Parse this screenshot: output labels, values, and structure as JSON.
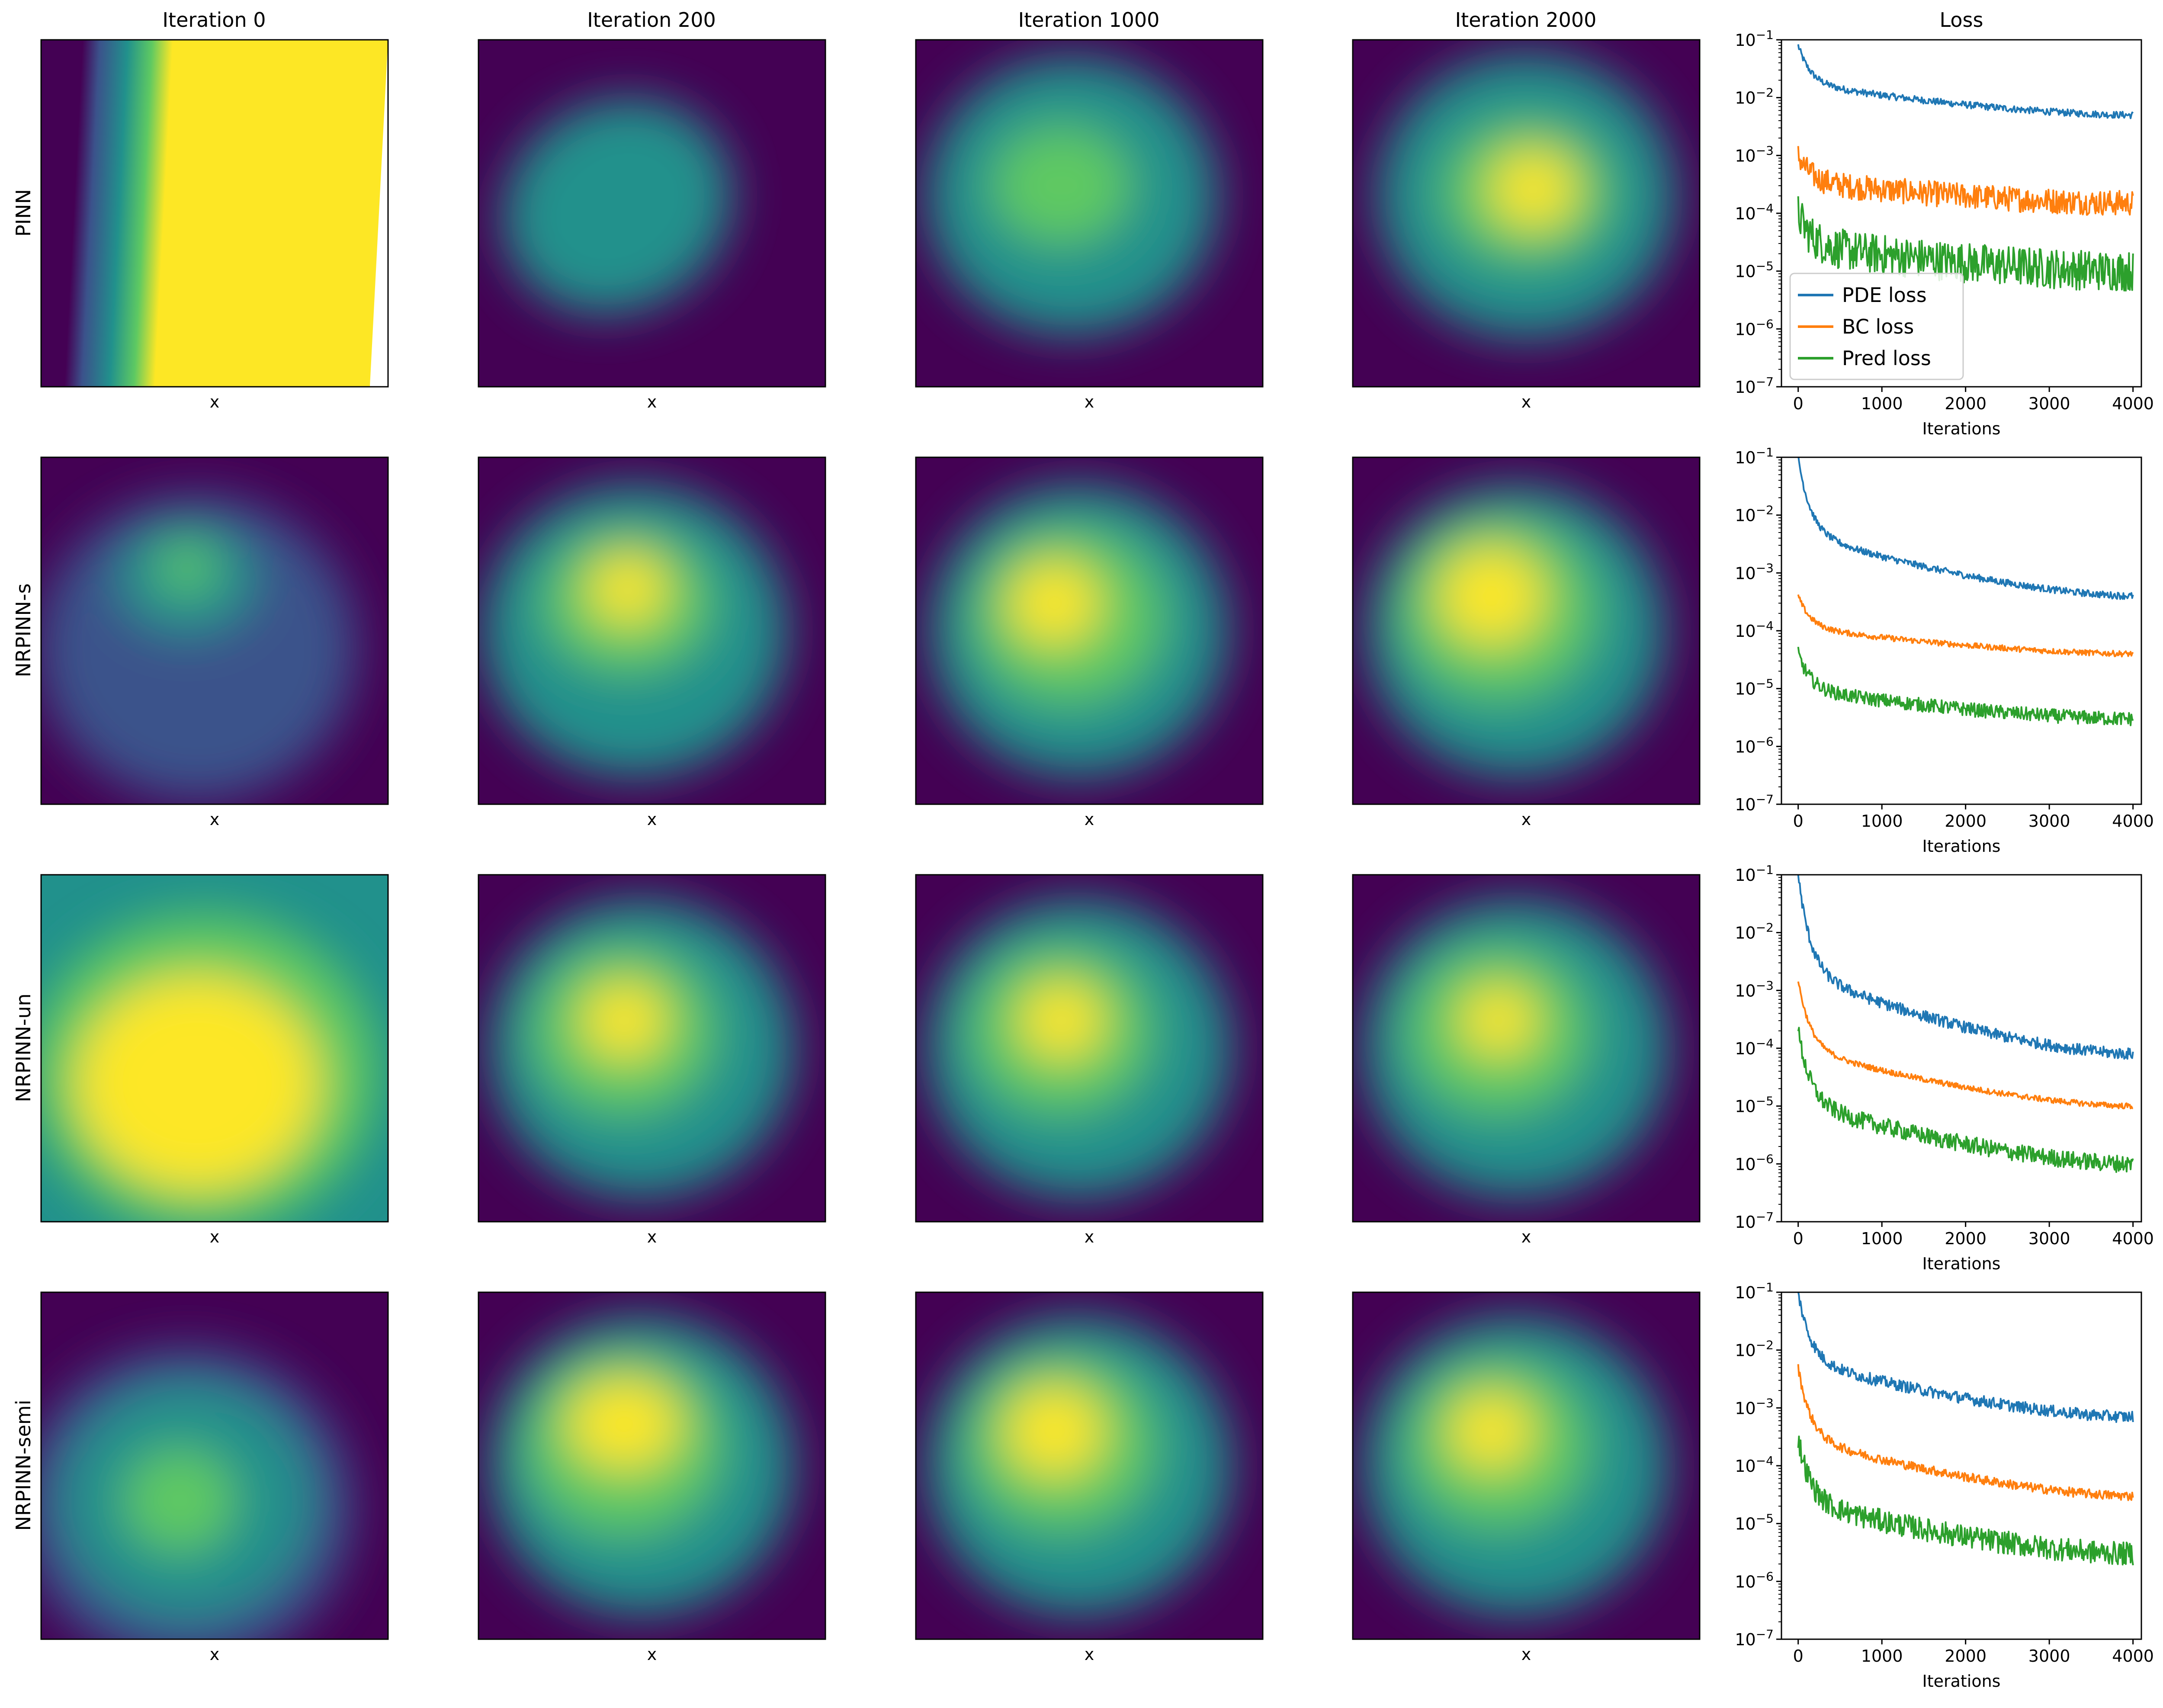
{
  "chart_data": {
    "type": "heatmap",
    "column_titles": [
      "Iteration 0",
      "Iteration 200",
      "Iteration 1000",
      "Iteration 2000",
      "Loss"
    ],
    "row_labels": [
      "PINN",
      "NRPINN-s",
      "NRPINN-un",
      "NRPINN-semi"
    ],
    "heatmap_xlabel": "x",
    "colormap": "viridis",
    "colormap_stops": [
      "#440154",
      "#3b528b",
      "#21918c",
      "#5ec962",
      "#fde725"
    ],
    "panels": [
      {
        "model": "PINN",
        "iteration": 0,
        "description_kind": "vertical band, bright to the right"
      },
      {
        "model": "PINN",
        "iteration": 200
      },
      {
        "model": "PINN",
        "iteration": 1000
      },
      {
        "model": "PINN",
        "iteration": 2000
      },
      {
        "model": "NRPINN-s",
        "iteration": 0
      },
      {
        "model": "NRPINN-s",
        "iteration": 200
      },
      {
        "model": "NRPINN-s",
        "iteration": 1000
      },
      {
        "model": "NRPINN-s",
        "iteration": 2000
      },
      {
        "model": "NRPINN-un",
        "iteration": 0
      },
      {
        "model": "NRPINN-un",
        "iteration": 200
      },
      {
        "model": "NRPINN-un",
        "iteration": 1000
      },
      {
        "model": "NRPINN-un",
        "iteration": 2000
      },
      {
        "model": "NRPINN-semi",
        "iteration": 0
      },
      {
        "model": "NRPINN-semi",
        "iteration": 200
      },
      {
        "model": "NRPINN-semi",
        "iteration": 1000
      },
      {
        "model": "NRPINN-semi",
        "iteration": 2000
      }
    ],
    "loss": {
      "type": "line",
      "yscale": "log",
      "xlabel": "Iterations",
      "xlim": [
        -200,
        4100
      ],
      "ylim": [
        1e-07,
        0.1
      ],
      "xticks": [
        0,
        1000,
        2000,
        3000,
        4000
      ],
      "xtick_labels": [
        "0",
        "1000",
        "2000",
        "3000",
        "4000"
      ],
      "ytick_exponents": [
        -7,
        -6,
        -5,
        -4,
        -3,
        -2,
        -1
      ],
      "ytick_base": "10",
      "legend_location": "lower-left",
      "legend_panel": 0,
      "series_meta": [
        {
          "name": "PDE loss",
          "color": "#1f77b4"
        },
        {
          "name": "BC loss",
          "color": "#ff7f0e"
        },
        {
          "name": "Pred loss",
          "color": "#2ca02c"
        }
      ],
      "rows": [
        {
          "model": "PINN",
          "series": [
            {
              "name": "PDE loss",
              "start": 0.08,
              "end": 0.005,
              "noise": 0.06
            },
            {
              "name": "BC loss",
              "start": 0.001,
              "end": 0.00015,
              "noise": 0.22
            },
            {
              "name": "Pred loss",
              "start": 0.0001,
              "end": 1e-05,
              "noise": 0.35
            }
          ]
        },
        {
          "model": "NRPINN-s",
          "series": [
            {
              "name": "PDE loss",
              "start": 0.1,
              "end": 0.0004,
              "noise": 0.06
            },
            {
              "name": "BC loss",
              "start": 0.0004,
              "end": 4e-05,
              "noise": 0.05
            },
            {
              "name": "Pred loss",
              "start": 4e-05,
              "end": 3e-06,
              "noise": 0.12
            }
          ]
        },
        {
          "model": "NRPINN-un",
          "series": [
            {
              "name": "PDE loss",
              "start": 0.1,
              "end": 8e-05,
              "noise": 0.1
            },
            {
              "name": "BC loss",
              "start": 0.0015,
              "end": 1e-05,
              "noise": 0.05
            },
            {
              "name": "Pred loss",
              "start": 0.0002,
              "end": 1e-06,
              "noise": 0.15
            }
          ]
        },
        {
          "model": "NRPINN-semi",
          "series": [
            {
              "name": "PDE loss",
              "start": 0.1,
              "end": 0.0007,
              "noise": 0.1
            },
            {
              "name": "BC loss",
              "start": 0.005,
              "end": 3e-05,
              "noise": 0.08
            },
            {
              "name": "Pred loss",
              "start": 0.0003,
              "end": 3e-06,
              "noise": 0.2
            }
          ]
        }
      ]
    }
  }
}
